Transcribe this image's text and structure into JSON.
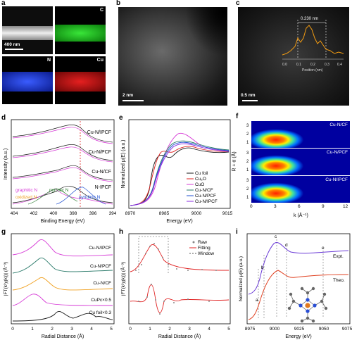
{
  "panels": {
    "a": {
      "label": "a",
      "tiles": [
        "",
        "C",
        "N",
        "Cu"
      ],
      "scalebar": "400 nm"
    },
    "b": {
      "label": "b",
      "scalebar": "2 nm"
    },
    "c": {
      "label": "c",
      "scalebar": "0.5 nm",
      "inset_annot": "0.230 nm",
      "inset_xlabel": "Position (nm)",
      "inset_ticks": [
        "0.0",
        "0.1",
        "0.2",
        "0.3",
        "0.4"
      ]
    },
    "d": {
      "label": "d",
      "ylabel": "Intensity (a.u.)",
      "xlabel": "Binding Energy (eV)",
      "xticks": [
        "404",
        "402",
        "400",
        "398",
        "396",
        "394"
      ],
      "series": [
        "Cu-N/IPCF",
        "Cu-N/PCF",
        "Cu-N/CF",
        "N-IPCF"
      ],
      "peaks": [
        "graphitic N",
        "pyrrolic N",
        "oxidized N",
        "pyridinic N"
      ]
    },
    "e": {
      "label": "e",
      "ylabel": "Normalized μ(E) (a.u.)",
      "xlabel": "Energy (eV)",
      "xticks": [
        "8970",
        "8985",
        "9000",
        "9015"
      ],
      "legend": [
        "Cu foil",
        "Cu₂O",
        "CuO",
        "Cu-N/CF",
        "Cu-N/PCF",
        "Cu-N/IPCF"
      ]
    },
    "f": {
      "label": "f",
      "ylabel": "R + α (Å)",
      "xlabel": "k (Å⁻¹)",
      "xticks": [
        "0",
        "3",
        "6",
        "9",
        "12"
      ],
      "yticks": [
        "1",
        "2",
        "3"
      ],
      "maps": [
        "Cu-N/CF",
        "Cu-N/PCF",
        "Cu-N/IPCF"
      ]
    },
    "g": {
      "label": "g",
      "ylabel": "|FT(k²χ(k))| (Å⁻³)",
      "xlabel": "Radial Distance (Å)",
      "xticks": [
        "0",
        "1",
        "2",
        "3",
        "4",
        "5"
      ],
      "series": [
        "Cu-N/IPCF",
        "Cu-N/PCF",
        "Cu-N/CF",
        "CuPc×0.5",
        "Cu foil×0.3"
      ]
    },
    "h": {
      "label": "h",
      "ylabel": "|FT(k²χ(k))| (Å⁻³)",
      "xlabel": "Radial Distance (Å)",
      "xticks": [
        "0",
        "1",
        "2",
        "3",
        "4",
        "5"
      ],
      "legend": [
        "Raw",
        "Fitting",
        "Window"
      ]
    },
    "i": {
      "label": "i",
      "ylabel": "Normalized μ(E) (a.u.)",
      "xlabel": "Energy (eV)",
      "xticks": [
        "8975",
        "9000",
        "9025",
        "9050",
        "9075"
      ],
      "series": [
        "Expt.",
        "Theo."
      ],
      "marks": [
        "a",
        "b",
        "c",
        "d",
        "e"
      ]
    }
  },
  "colors": {
    "black": "#1a1a1a",
    "red": "#e02020",
    "orange": "#f0a020",
    "green": "#2e7d32",
    "blue": "#1f4fd1",
    "magenta": "#d63ad6",
    "teal": "#2a7a6a"
  }
}
